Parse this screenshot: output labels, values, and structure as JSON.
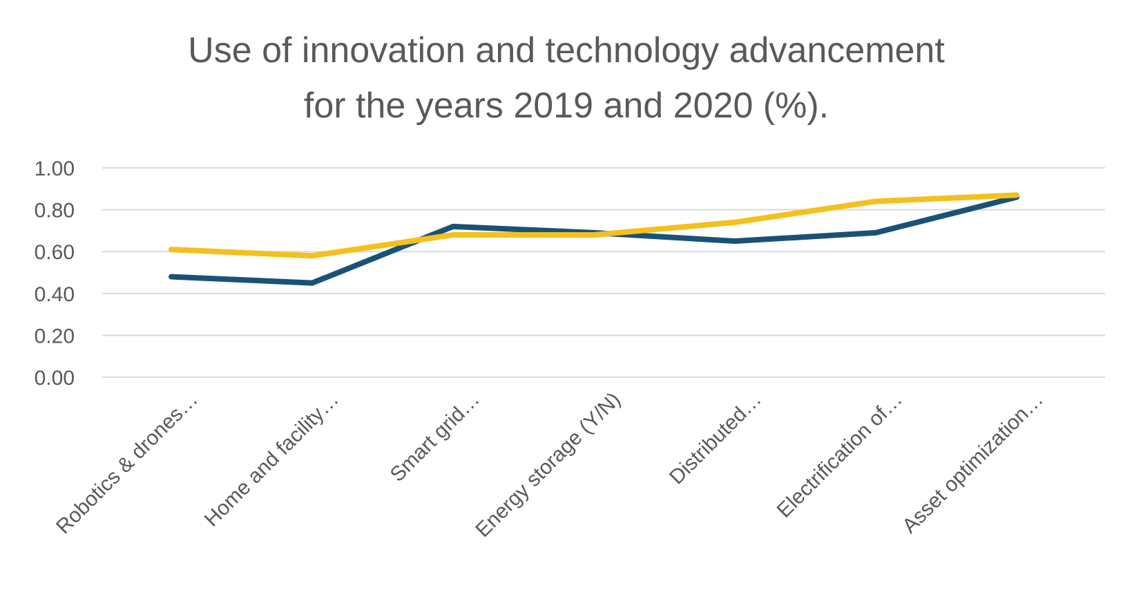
{
  "chart_data": {
    "type": "line",
    "title_lines": [
      "Use of innovation and technology advancement",
      "for the years 2019 and 2020 (%)."
    ],
    "xlabel": "",
    "ylabel": "",
    "ylim": [
      0,
      1
    ],
    "y_ticks": [
      "0.00",
      "0.20",
      "0.40",
      "0.60",
      "0.80",
      "1.00"
    ],
    "y_tick_values": [
      0,
      0.2,
      0.4,
      0.6,
      0.8,
      1.0
    ],
    "grid": true,
    "legend": "none",
    "categories": [
      "Robotics & drones…",
      "Home and facility…",
      "Smart grid…",
      "Energy storage (Y/N)",
      "Distributed…",
      "Electrification of…",
      "Asset optimization…"
    ],
    "series": [
      {
        "color": "#1a5276",
        "values": [
          0.48,
          0.45,
          0.72,
          0.69,
          0.65,
          0.69,
          0.86
        ]
      },
      {
        "color": "#f4c01e",
        "values": [
          0.61,
          0.58,
          0.68,
          0.68,
          0.74,
          0.84,
          0.87
        ]
      }
    ]
  }
}
